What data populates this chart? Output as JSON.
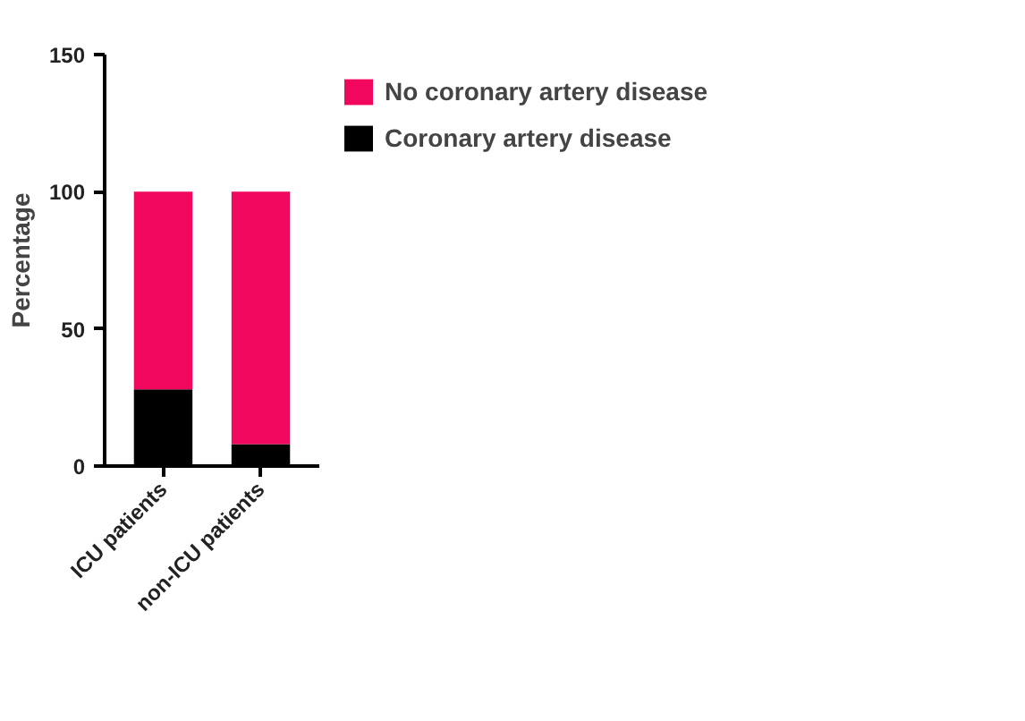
{
  "chart_data": {
    "type": "bar",
    "stacked": true,
    "ylabel": "Percentage",
    "categories": [
      "ICU patients",
      "non-ICU patients"
    ],
    "series": [
      {
        "name": "Coronary artery disease",
        "color": "#000000",
        "values": [
          28,
          8
        ]
      },
      {
        "name": "No coronary artery disease",
        "color": "#f2075f",
        "values": [
          72,
          92
        ]
      }
    ],
    "ylim": [
      0,
      150
    ],
    "yticks": [
      0,
      50,
      100,
      150
    ],
    "grid": false,
    "legend": "top right"
  }
}
